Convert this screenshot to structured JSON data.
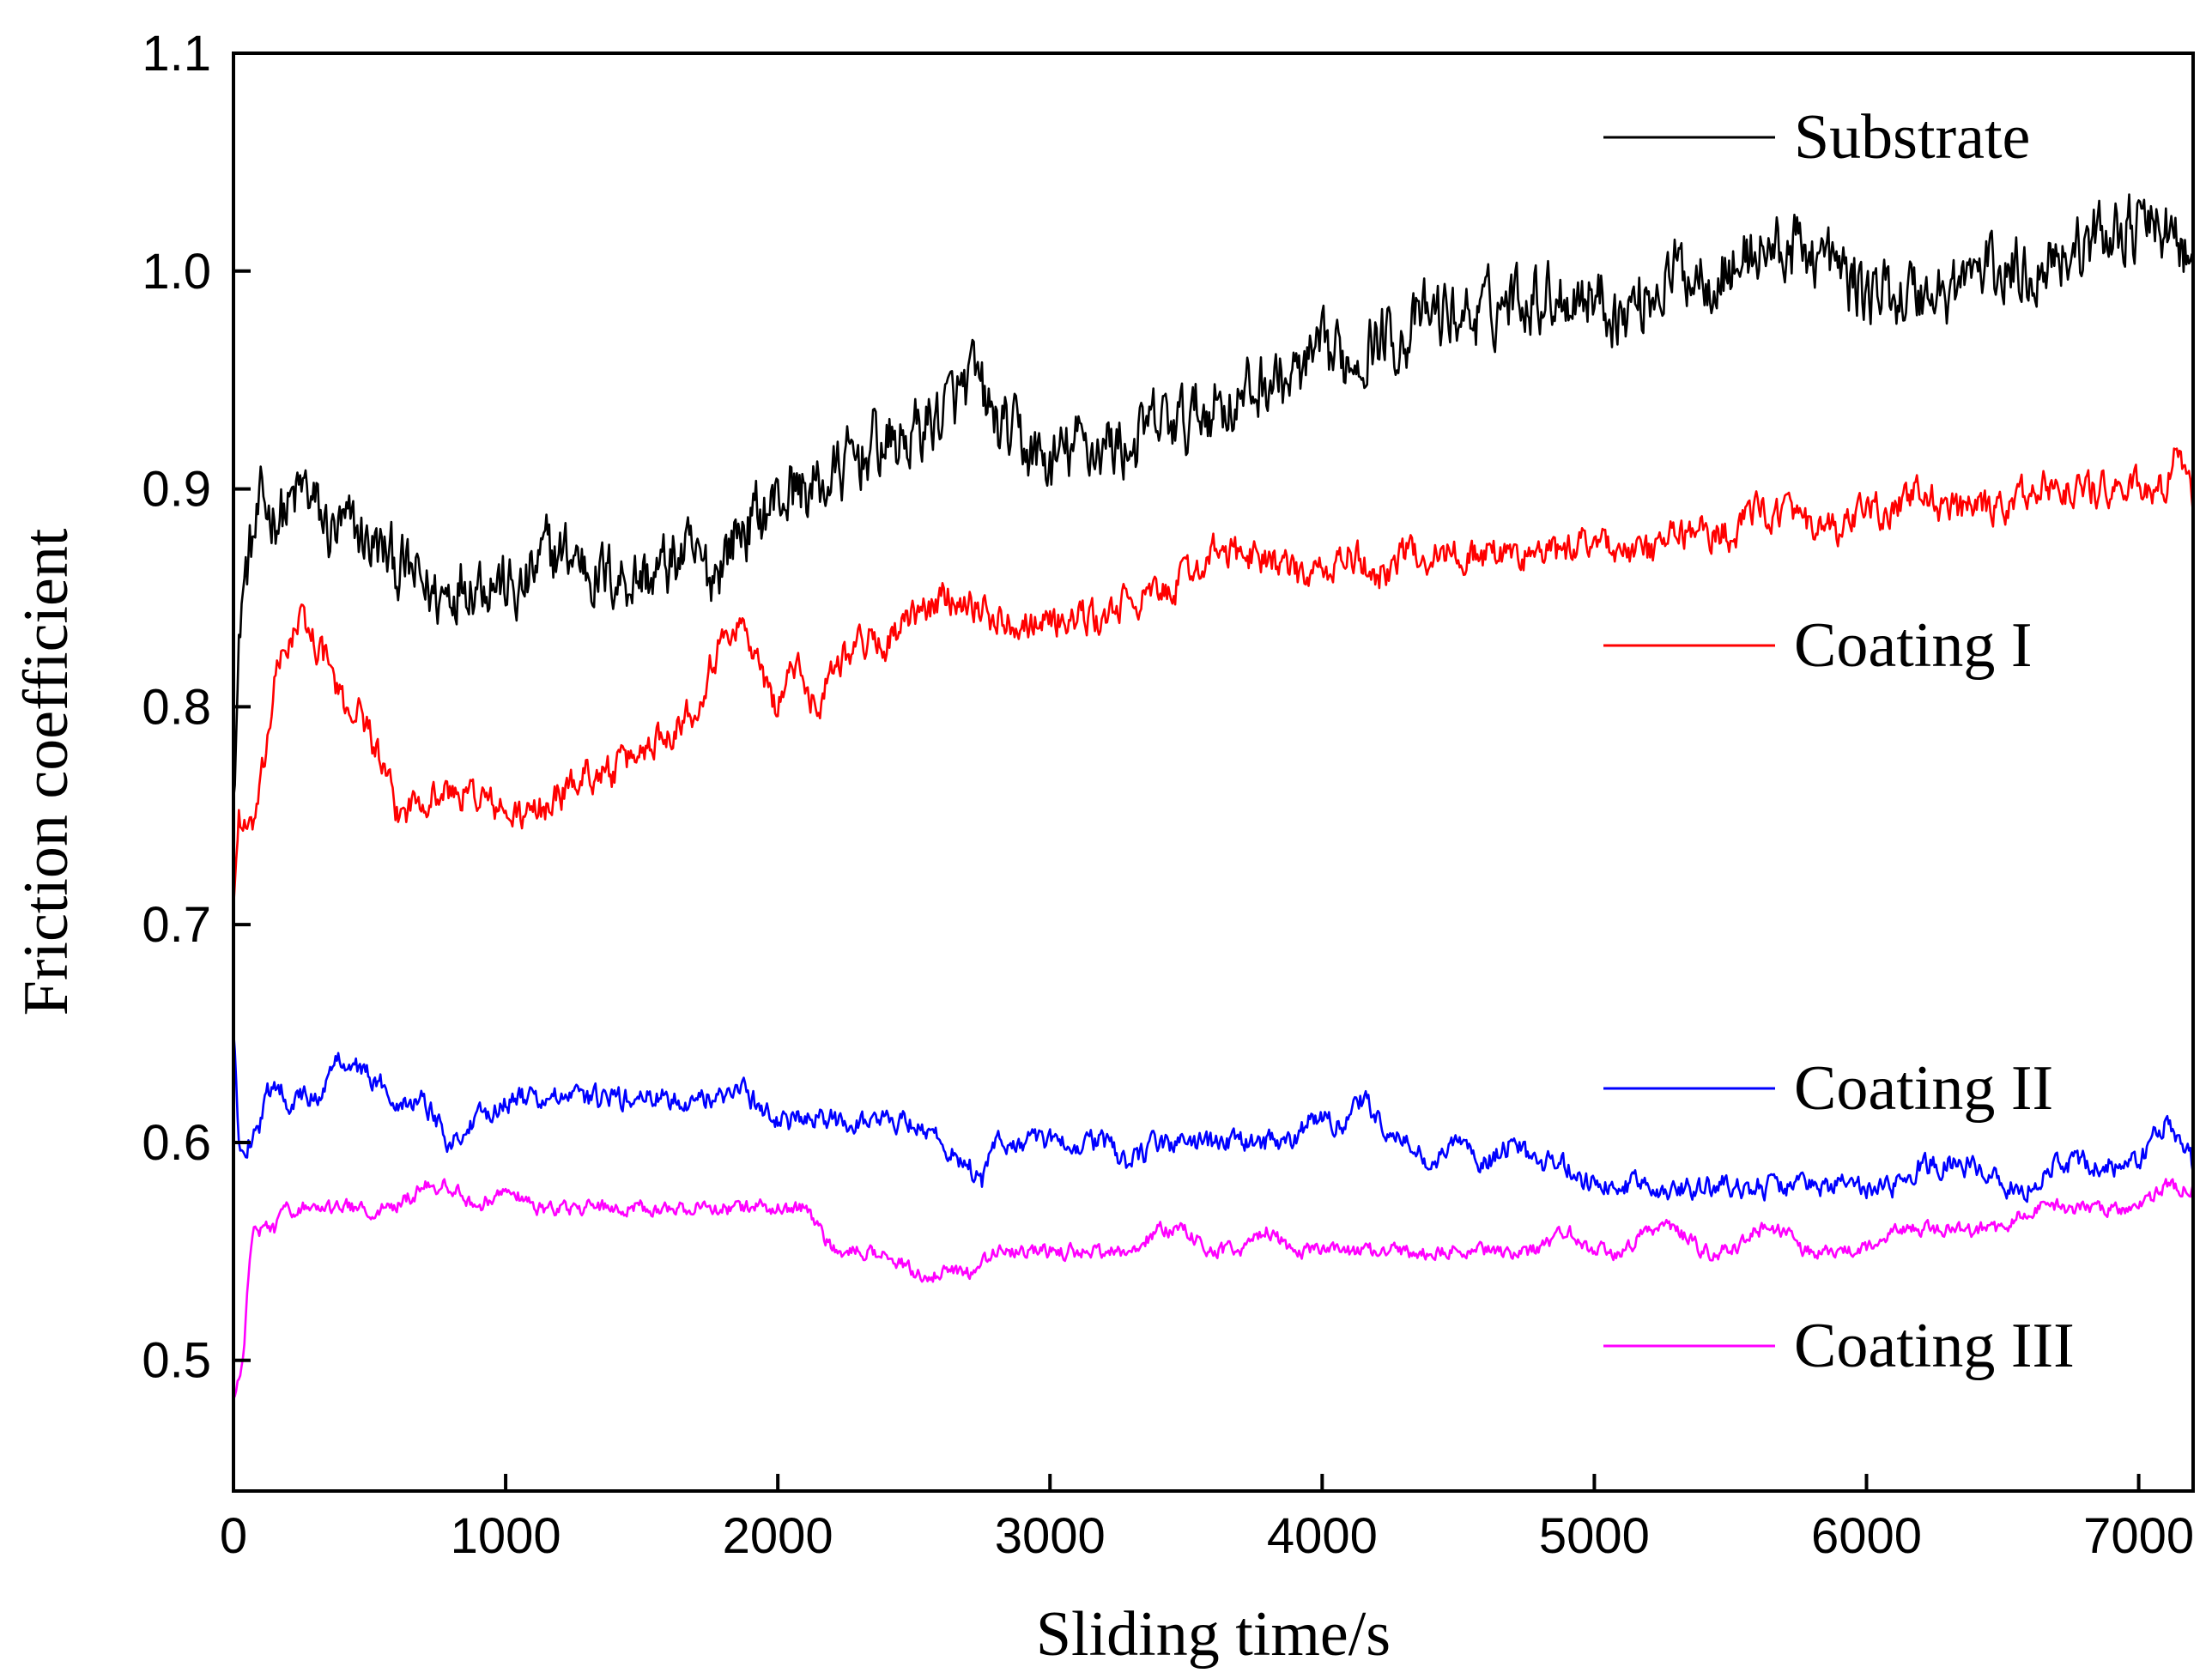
{
  "chart_data": {
    "type": "line",
    "title": "",
    "xlabel": "Sliding time/s",
    "ylabel": "Friction coefficient",
    "xlim": [
      0,
      7200
    ],
    "ylim": [
      0.44,
      1.1
    ],
    "xticks": [
      0,
      1000,
      2000,
      3000,
      4000,
      5000,
      6000,
      7000
    ],
    "xtick_labels": [
      "0",
      "1000",
      "2000",
      "3000",
      "4000",
      "5000",
      "6000",
      "7000"
    ],
    "yticks": [
      0.5,
      0.6,
      0.7,
      0.8,
      0.9,
      1.0,
      1.1
    ],
    "ytick_labels": [
      "0.5",
      "0.6",
      "0.7",
      "0.8",
      "0.9",
      "1.0",
      "1.1"
    ],
    "grid": false,
    "legend_position": "right, beside each curve",
    "series": [
      {
        "name": "Substrate",
        "color": "#000000",
        "noise": 0.018,
        "x": [
          0,
          30,
          60,
          100,
          150,
          200,
          260,
          350,
          450,
          550,
          650,
          750,
          850,
          950,
          1050,
          1150,
          1250,
          1350,
          1450,
          1550,
          1650,
          1750,
          1850,
          1950,
          2050,
          2150,
          2250,
          2350,
          2450,
          2550,
          2650,
          2720,
          2800,
          2900,
          3000,
          3100,
          3200,
          3300,
          3400,
          3500,
          3600,
          3700,
          3800,
          3900,
          4000,
          4100,
          4200,
          4300,
          4400,
          4500,
          4600,
          4700,
          4800,
          4900,
          5000,
          5100,
          5200,
          5300,
          5400,
          5500,
          5600,
          5700,
          5800,
          5900,
          6000,
          6100,
          6200,
          6300,
          6400,
          6500,
          6600,
          6700,
          6800,
          6900,
          7000,
          7100,
          7200
        ],
        "values": [
          0.77,
          0.85,
          0.87,
          0.89,
          0.89,
          0.89,
          0.9,
          0.88,
          0.88,
          0.87,
          0.86,
          0.85,
          0.86,
          0.86,
          0.85,
          0.87,
          0.87,
          0.86,
          0.86,
          0.86,
          0.87,
          0.86,
          0.88,
          0.89,
          0.9,
          0.9,
          0.91,
          0.92,
          0.92,
          0.93,
          0.94,
          0.95,
          0.93,
          0.92,
          0.91,
          0.92,
          0.92,
          0.92,
          0.93,
          0.93,
          0.94,
          0.94,
          0.95,
          0.95,
          0.96,
          0.96,
          0.97,
          0.97,
          0.98,
          0.98,
          0.98,
          0.99,
          0.99,
          0.99,
          0.99,
          0.98,
          0.99,
          1.0,
          1.0,
          1.0,
          1.01,
          1.01,
          1.01,
          1.0,
          0.99,
          0.99,
          0.99,
          0.99,
          1.0,
          1.0,
          1.0,
          1.01,
          1.01,
          1.02,
          1.02,
          1.02,
          1.0
        ]
      },
      {
        "name": "Coating I",
        "color": "#ff0000",
        "noise": 0.009,
        "x": [
          0,
          20,
          60,
          100,
          150,
          200,
          250,
          300,
          350,
          400,
          450,
          500,
          550,
          600,
          700,
          800,
          900,
          1000,
          1100,
          1200,
          1300,
          1400,
          1500,
          1600,
          1700,
          1750,
          1800,
          1850,
          1900,
          1950,
          2000,
          2050,
          2100,
          2150,
          2200,
          2300,
          2400,
          2500,
          2600,
          2700,
          2800,
          2900,
          3000,
          3100,
          3200,
          3300,
          3400,
          3500,
          3600,
          3700,
          3800,
          3900,
          4000,
          4100,
          4200,
          4300,
          4400,
          4500,
          4600,
          4700,
          4800,
          4900,
          5000,
          5100,
          5200,
          5300,
          5400,
          5500,
          5600,
          5700,
          5800,
          5900,
          6000,
          6100,
          6200,
          6300,
          6400,
          6500,
          6600,
          6700,
          6800,
          6900,
          7000,
          7100,
          7150,
          7200
        ],
        "values": [
          0.71,
          0.75,
          0.74,
          0.76,
          0.81,
          0.83,
          0.84,
          0.83,
          0.82,
          0.8,
          0.8,
          0.79,
          0.77,
          0.75,
          0.76,
          0.76,
          0.76,
          0.75,
          0.75,
          0.76,
          0.77,
          0.77,
          0.78,
          0.79,
          0.8,
          0.82,
          0.83,
          0.84,
          0.83,
          0.81,
          0.8,
          0.82,
          0.81,
          0.8,
          0.82,
          0.83,
          0.83,
          0.84,
          0.85,
          0.85,
          0.84,
          0.84,
          0.84,
          0.84,
          0.84,
          0.85,
          0.85,
          0.86,
          0.87,
          0.87,
          0.87,
          0.86,
          0.86,
          0.87,
          0.86,
          0.87,
          0.87,
          0.87,
          0.87,
          0.87,
          0.87,
          0.87,
          0.88,
          0.87,
          0.87,
          0.88,
          0.88,
          0.88,
          0.89,
          0.89,
          0.88,
          0.88,
          0.89,
          0.89,
          0.9,
          0.89,
          0.89,
          0.89,
          0.9,
          0.9,
          0.9,
          0.9,
          0.9,
          0.9,
          0.92,
          0.89
        ]
      },
      {
        "name": "Coating II",
        "color": "#0000ff",
        "noise": 0.006,
        "x": [
          0,
          20,
          50,
          100,
          150,
          200,
          300,
          400,
          500,
          600,
          700,
          750,
          800,
          900,
          1000,
          1100,
          1200,
          1300,
          1400,
          1500,
          1600,
          1700,
          1800,
          1850,
          1900,
          2000,
          2100,
          2200,
          2300,
          2400,
          2500,
          2600,
          2700,
          2750,
          2800,
          2900,
          3000,
          3100,
          3200,
          3300,
          3400,
          3500,
          3600,
          3700,
          3800,
          3900,
          3950,
          4000,
          4100,
          4150,
          4200,
          4300,
          4400,
          4500,
          4600,
          4700,
          4800,
          4900,
          5000,
          5100,
          5200,
          5300,
          5400,
          5500,
          5600,
          5700,
          5800,
          5900,
          6000,
          6100,
          6200,
          6300,
          6400,
          6500,
          6600,
          6700,
          6800,
          6900,
          7000,
          7050,
          7100,
          7150,
          7200
        ],
        "values": [
          0.65,
          0.6,
          0.6,
          0.61,
          0.63,
          0.62,
          0.62,
          0.64,
          0.63,
          0.62,
          0.62,
          0.61,
          0.6,
          0.61,
          0.62,
          0.62,
          0.62,
          0.62,
          0.62,
          0.62,
          0.62,
          0.62,
          0.62,
          0.63,
          0.62,
          0.61,
          0.61,
          0.61,
          0.61,
          0.61,
          0.61,
          0.6,
          0.59,
          0.58,
          0.6,
          0.6,
          0.6,
          0.6,
          0.6,
          0.59,
          0.6,
          0.6,
          0.6,
          0.6,
          0.6,
          0.6,
          0.61,
          0.61,
          0.61,
          0.62,
          0.61,
          0.6,
          0.59,
          0.6,
          0.59,
          0.6,
          0.59,
          0.59,
          0.58,
          0.58,
          0.58,
          0.58,
          0.58,
          0.58,
          0.58,
          0.58,
          0.58,
          0.58,
          0.58,
          0.58,
          0.59,
          0.59,
          0.59,
          0.58,
          0.58,
          0.59,
          0.59,
          0.59,
          0.59,
          0.6,
          0.61,
          0.6,
          0.59
        ]
      },
      {
        "name": "Coating III",
        "color": "#ff00ff",
        "noise": 0.004,
        "x": [
          0,
          20,
          40,
          60,
          80,
          100,
          150,
          200,
          300,
          400,
          500,
          600,
          700,
          800,
          900,
          1000,
          1100,
          1200,
          1300,
          1400,
          1500,
          1600,
          1700,
          1800,
          1900,
          2000,
          2100,
          2150,
          2200,
          2300,
          2400,
          2500,
          2600,
          2700,
          2800,
          2900,
          3000,
          3100,
          3200,
          3300,
          3400,
          3500,
          3600,
          3700,
          3800,
          3900,
          4000,
          4100,
          4200,
          4300,
          4400,
          4500,
          4600,
          4700,
          4800,
          4900,
          5000,
          5100,
          5200,
          5300,
          5400,
          5500,
          5600,
          5700,
          5750,
          5800,
          5850,
          5900,
          6000,
          6100,
          6200,
          6300,
          6400,
          6500,
          6600,
          6700,
          6800,
          6900,
          7000,
          7100,
          7200
        ],
        "values": [
          0.48,
          0.49,
          0.51,
          0.55,
          0.56,
          0.56,
          0.56,
          0.57,
          0.57,
          0.57,
          0.57,
          0.57,
          0.58,
          0.58,
          0.57,
          0.58,
          0.57,
          0.57,
          0.57,
          0.57,
          0.57,
          0.57,
          0.57,
          0.57,
          0.57,
          0.57,
          0.57,
          0.56,
          0.55,
          0.55,
          0.55,
          0.54,
          0.54,
          0.54,
          0.55,
          0.55,
          0.55,
          0.55,
          0.55,
          0.55,
          0.56,
          0.56,
          0.55,
          0.55,
          0.56,
          0.55,
          0.55,
          0.55,
          0.55,
          0.55,
          0.55,
          0.55,
          0.55,
          0.55,
          0.55,
          0.56,
          0.55,
          0.55,
          0.56,
          0.56,
          0.55,
          0.55,
          0.56,
          0.56,
          0.55,
          0.55,
          0.55,
          0.55,
          0.55,
          0.56,
          0.56,
          0.56,
          0.56,
          0.56,
          0.57,
          0.57,
          0.57,
          0.57,
          0.57,
          0.58,
          0.58
        ]
      }
    ]
  }
}
